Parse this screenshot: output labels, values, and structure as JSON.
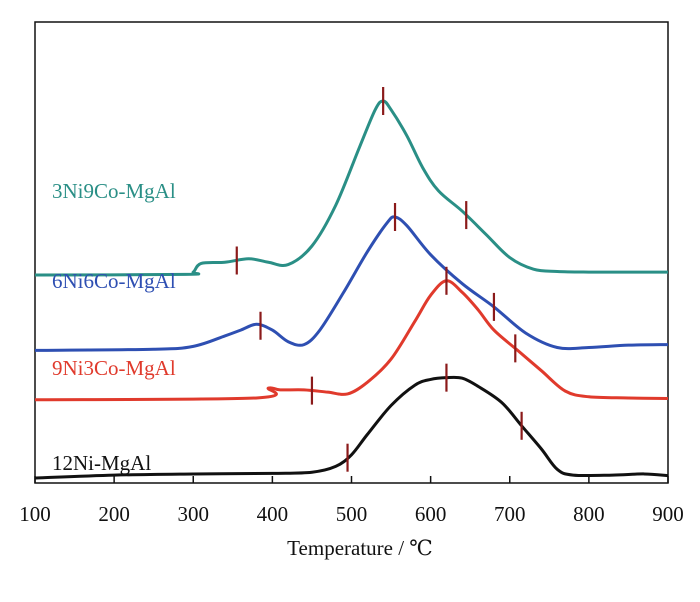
{
  "chart_data": {
    "type": "line",
    "title": "",
    "xlabel": "Temperature / ℃",
    "ylabel": "",
    "xlim": [
      100,
      900
    ],
    "xticks": [
      100,
      200,
      300,
      400,
      500,
      600,
      700,
      800,
      900
    ],
    "grid": false,
    "legend": "inline labels beside curves",
    "y_scale_note": "stacked offset curves, no y-axis values",
    "series": [
      {
        "name": "3Ni9Co-MgAl",
        "color": "#2a8f86",
        "label_color": "#2a8f86",
        "baseline": 3.5,
        "points": [
          [
            100,
            0
          ],
          [
            290,
            0.01
          ],
          [
            300,
            0.05
          ],
          [
            310,
            0.2
          ],
          [
            340,
            0.22
          ],
          [
            370,
            0.28
          ],
          [
            395,
            0.22
          ],
          [
            420,
            0.18
          ],
          [
            450,
            0.5
          ],
          [
            480,
            1.2
          ],
          [
            510,
            2.2
          ],
          [
            530,
            2.85
          ],
          [
            540,
            3.0
          ],
          [
            550,
            2.85
          ],
          [
            570,
            2.4
          ],
          [
            590,
            1.85
          ],
          [
            610,
            1.45
          ],
          [
            640,
            1.1
          ],
          [
            670,
            0.7
          ],
          [
            700,
            0.3
          ],
          [
            730,
            0.1
          ],
          [
            760,
            0.06
          ],
          [
            800,
            0.05
          ],
          [
            850,
            0.05
          ],
          [
            900,
            0.05
          ]
        ],
        "markers": [
          355,
          540,
          645
        ]
      },
      {
        "name": "6Ni6Co-MgAl",
        "color": "#2e4fb2",
        "label_color": "#2e4fb2",
        "baseline": 2.2,
        "points": [
          [
            100,
            0
          ],
          [
            250,
            0.02
          ],
          [
            300,
            0.07
          ],
          [
            340,
            0.25
          ],
          [
            360,
            0.35
          ],
          [
            380,
            0.45
          ],
          [
            400,
            0.35
          ],
          [
            420,
            0.15
          ],
          [
            440,
            0.1
          ],
          [
            460,
            0.35
          ],
          [
            490,
            1.0
          ],
          [
            520,
            1.7
          ],
          [
            545,
            2.2
          ],
          [
            555,
            2.3
          ],
          [
            570,
            2.15
          ],
          [
            600,
            1.65
          ],
          [
            640,
            1.15
          ],
          [
            680,
            0.75
          ],
          [
            720,
            0.3
          ],
          [
            760,
            0.05
          ],
          [
            800,
            0.05
          ],
          [
            850,
            0.09
          ],
          [
            900,
            0.1
          ]
        ],
        "markers": [
          385,
          555,
          680
        ]
      },
      {
        "name": "9Ni3Co-MgAl",
        "color": "#e03a2c",
        "label_color": "#e03a2c",
        "baseline": 1.35,
        "points": [
          [
            100,
            0
          ],
          [
            380,
            0.03
          ],
          [
            395,
            0.2
          ],
          [
            410,
            0.17
          ],
          [
            440,
            0.17
          ],
          [
            470,
            0.13
          ],
          [
            495,
            0.1
          ],
          [
            520,
            0.3
          ],
          [
            550,
            0.7
          ],
          [
            580,
            1.35
          ],
          [
            600,
            1.8
          ],
          [
            620,
            2.05
          ],
          [
            640,
            1.85
          ],
          [
            660,
            1.55
          ],
          [
            680,
            1.2
          ],
          [
            710,
            0.85
          ],
          [
            740,
            0.5
          ],
          [
            770,
            0.15
          ],
          [
            800,
            0.05
          ],
          [
            850,
            0.03
          ],
          [
            900,
            0.02
          ]
        ],
        "markers": [
          450,
          620,
          707
        ]
      },
      {
        "name": "12Ni-MgAl",
        "color": "#111111",
        "label_color": "#111111",
        "baseline": 0.0,
        "points": [
          [
            100,
            0
          ],
          [
            200,
            0.05
          ],
          [
            300,
            0.07
          ],
          [
            400,
            0.08
          ],
          [
            450,
            0.1
          ],
          [
            480,
            0.2
          ],
          [
            500,
            0.4
          ],
          [
            520,
            0.75
          ],
          [
            550,
            1.25
          ],
          [
            580,
            1.6
          ],
          [
            600,
            1.7
          ],
          [
            620,
            1.73
          ],
          [
            640,
            1.72
          ],
          [
            660,
            1.58
          ],
          [
            690,
            1.3
          ],
          [
            715,
            0.9
          ],
          [
            740,
            0.5
          ],
          [
            760,
            0.15
          ],
          [
            780,
            0.05
          ],
          [
            830,
            0.05
          ],
          [
            870,
            0.07
          ],
          [
            900,
            0.04
          ]
        ],
        "markers": [
          495,
          620,
          715
        ]
      }
    ]
  }
}
